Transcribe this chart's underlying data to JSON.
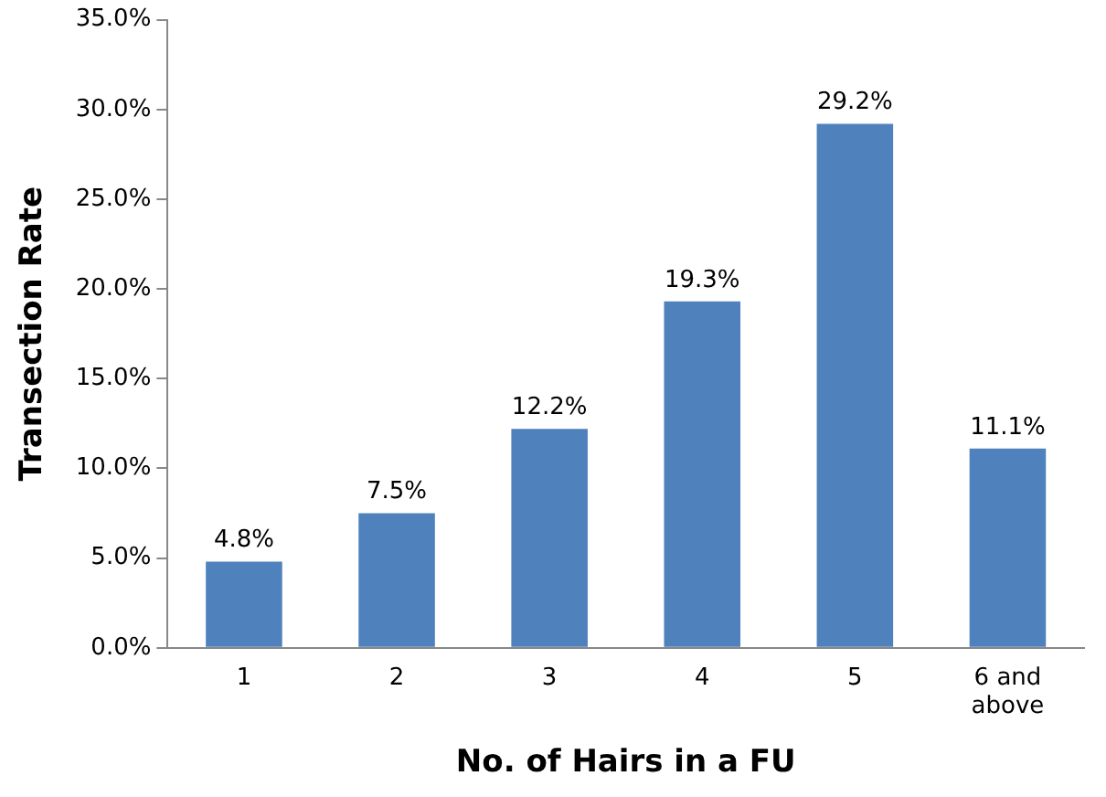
{
  "chart_data": {
    "type": "bar",
    "xlabel": "No. of Hairs in a FU",
    "ylabel": "Transection Rate",
    "categories": [
      "1",
      "2",
      "3",
      "4",
      "5",
      "6 and above"
    ],
    "values": [
      4.8,
      7.5,
      12.2,
      19.3,
      29.2,
      11.1
    ],
    "value_labels": [
      "4.8%",
      "7.5%",
      "12.2%",
      "19.3%",
      "29.2%",
      "11.1%"
    ],
    "color": "#4f81bd",
    "ylim": [
      0,
      35
    ],
    "yticks": [
      {
        "value": 0,
        "label": "0.0%"
      },
      {
        "value": 5,
        "label": "5.0%"
      },
      {
        "value": 10,
        "label": "10.0%"
      },
      {
        "value": 15,
        "label": "15.0%"
      },
      {
        "value": 20,
        "label": "20.0%"
      },
      {
        "value": 25,
        "label": "25.0%"
      },
      {
        "value": 30,
        "label": "30.0%"
      },
      {
        "value": 35,
        "label": "35.0%"
      }
    ],
    "grid": false,
    "legend": false
  }
}
